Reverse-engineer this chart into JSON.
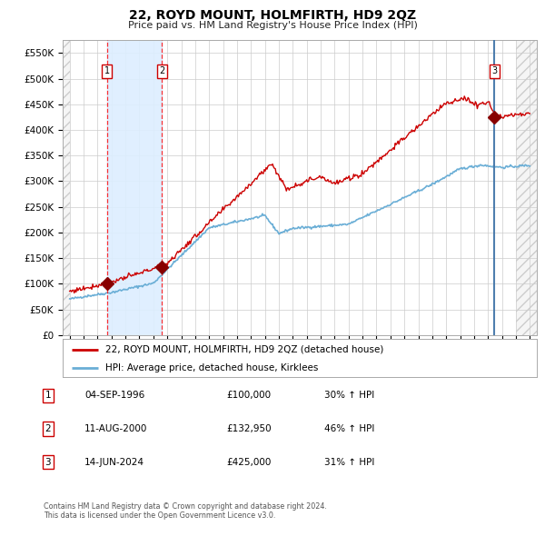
{
  "title": "22, ROYD MOUNT, HOLMFIRTH, HD9 2QZ",
  "subtitle": "Price paid vs. HM Land Registry's House Price Index (HPI)",
  "legend_line1": "22, ROYD MOUNT, HOLMFIRTH, HD9 2QZ (detached house)",
  "legend_line2": "HPI: Average price, detached house, Kirklees",
  "footer1": "Contains HM Land Registry data © Crown copyright and database right 2024.",
  "footer2": "This data is licensed under the Open Government Licence v3.0.",
  "transactions": [
    {
      "num": 1,
      "date": "04-SEP-1996",
      "price": 100000,
      "pct": "30%",
      "x_year": 1996.67
    },
    {
      "num": 2,
      "date": "11-AUG-2000",
      "price": 132950,
      "pct": "46%",
      "x_year": 2000.61
    },
    {
      "num": 3,
      "date": "14-JUN-2024",
      "price": 425000,
      "pct": "31%",
      "x_year": 2024.45
    }
  ],
  "ylim": [
    0,
    575000
  ],
  "xlim_start": 1993.5,
  "xlim_end": 2027.5,
  "hpi_color": "#6aaed6",
  "price_color": "#cc0000",
  "shade_color": "#ddeeff",
  "grid_color": "#cccccc",
  "hatch_color": "#cccccc",
  "background_color": "#ffffff",
  "sale_marker_color": "#880000",
  "vline_color": "#4477aa",
  "title_fontsize": 10,
  "subtitle_fontsize": 8
}
